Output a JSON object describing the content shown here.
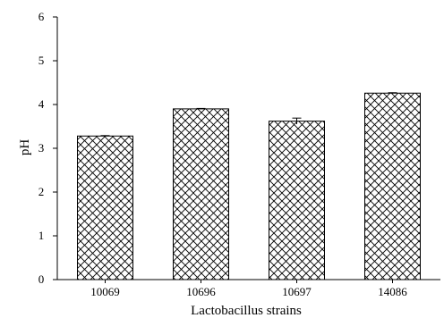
{
  "chart_data": {
    "type": "bar",
    "categories": [
      "10069",
      "10696",
      "10697",
      "14086"
    ],
    "values": [
      3.28,
      3.9,
      3.62,
      4.26
    ],
    "errors": [
      0.01,
      0.01,
      0.07,
      0.01
    ],
    "xlabel": "Lactobacillus strains",
    "ylabel": "pH",
    "ylim": [
      0,
      6
    ],
    "yticks": [
      0,
      1,
      2,
      3,
      4,
      5,
      6
    ],
    "grid": false,
    "bar_fill": "crosshatch",
    "colors": {
      "bar_stroke": "#000000",
      "hatch": "#000000",
      "axis": "#000000",
      "background": "#ffffff"
    }
  }
}
